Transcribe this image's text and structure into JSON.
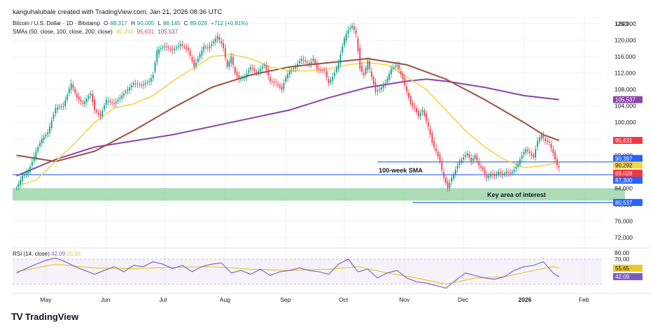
{
  "header": {
    "attribution": "kanguhalubale created with TradingView.com, Jan 21, 2026 08:36 UTC",
    "symbol": "Bitcoin / U.S. Dollar · 1D · Bitstamp",
    "ohlc": {
      "o_label": "O",
      "o": "88,317",
      "h_label": "H",
      "h": "90,005",
      "l_label": "L",
      "l": "88,145",
      "c_label": "C",
      "c": "89,028",
      "change": "+712 (+0.81%)"
    },
    "sma_label": "SMAs (50, close, 100, close, 200, close)",
    "sma50": "90,292",
    "sma100": "95,631",
    "sma200": "105,537",
    "currency": "USD"
  },
  "colors": {
    "up": "#089981",
    "down": "#f23645",
    "sma50": "#f2d64b",
    "sma100": "#9c4f3e",
    "sma200": "#8e44ad",
    "hline": "#2962ff",
    "zone": "#8fd19e",
    "rsi": "#7e57c2",
    "rsi_ma": "#e8c82f"
  },
  "annotations": {
    "sma100w_label": "100-week SMA",
    "key_area_label": "Key area of interest"
  },
  "rsi": {
    "title": "RSI (14, close)",
    "value": "42.09",
    "ma_value": "55.65"
  },
  "footer": {
    "logo_text": "TradingView"
  },
  "chart_data": [
    {
      "type": "candlestick",
      "title": "Bitcoin / U.S. Dollar · 1D · Bitstamp",
      "ylabel": "USD",
      "ylim": [
        70000,
        126000
      ],
      "y_ticks": [
        72000,
        76000,
        80000,
        84000,
        88000,
        92000,
        96000,
        100000,
        104000,
        108000,
        112000,
        116000,
        120000,
        124000
      ],
      "x_labels": [
        "May",
        "Jun",
        "Jul",
        "Aug",
        "Sep",
        "Oct",
        "Nov",
        "Dec",
        "2026",
        "Feb"
      ],
      "x_label_days": [
        15,
        46,
        76,
        107,
        138,
        168,
        199,
        229,
        260,
        291
      ],
      "price_path": [
        [
          0,
          84000
        ],
        [
          3,
          87000
        ],
        [
          6,
          88000
        ],
        [
          10,
          93000
        ],
        [
          13,
          96000
        ],
        [
          16,
          97500
        ],
        [
          20,
          103500
        ],
        [
          24,
          104000
        ],
        [
          28,
          109500
        ],
        [
          31,
          106000
        ],
        [
          34,
          104500
        ],
        [
          38,
          107000
        ],
        [
          40,
          103000
        ],
        [
          43,
          101500
        ],
        [
          46,
          105500
        ],
        [
          50,
          104500
        ],
        [
          53,
          106000
        ],
        [
          56,
          107500
        ],
        [
          60,
          109500
        ],
        [
          64,
          109000
        ],
        [
          68,
          110000
        ],
        [
          70,
          111500
        ],
        [
          72,
          117500
        ],
        [
          76,
          118500
        ],
        [
          80,
          117500
        ],
        [
          84,
          119000
        ],
        [
          88,
          117500
        ],
        [
          91,
          113500
        ],
        [
          94,
          116500
        ],
        [
          96,
          118500
        ],
        [
          98,
          118000
        ],
        [
          100,
          119000
        ],
        [
          103,
          121000
        ],
        [
          106,
          118000
        ],
        [
          108,
          113500
        ],
        [
          110,
          116000
        ],
        [
          112,
          112000
        ],
        [
          114,
          110500
        ],
        [
          117,
          111000
        ],
        [
          120,
          113500
        ],
        [
          123,
          112000
        ],
        [
          127,
          114000
        ],
        [
          130,
          110000
        ],
        [
          133,
          109500
        ],
        [
          136,
          108000
        ],
        [
          138,
          111000
        ],
        [
          140,
          112500
        ],
        [
          143,
          113500
        ],
        [
          146,
          115500
        ],
        [
          150,
          114000
        ],
        [
          152,
          115500
        ],
        [
          154,
          113000
        ],
        [
          158,
          112500
        ],
        [
          160,
          109500
        ],
        [
          163,
          112000
        ],
        [
          165,
          114500
        ],
        [
          168,
          120500
        ],
        [
          170,
          122500
        ],
        [
          172,
          123500
        ],
        [
          174,
          121500
        ],
        [
          176,
          113000
        ],
        [
          178,
          111500
        ],
        [
          180,
          115000
        ],
        [
          182,
          111000
        ],
        [
          184,
          107500
        ],
        [
          186,
          108000
        ],
        [
          189,
          109500
        ],
        [
          192,
          113000
        ],
        [
          195,
          114000
        ],
        [
          198,
          110500
        ],
        [
          200,
          107500
        ],
        [
          202,
          104500
        ],
        [
          204,
          103500
        ],
        [
          206,
          101500
        ],
        [
          208,
          103000
        ],
        [
          211,
          99000
        ],
        [
          213,
          95000
        ],
        [
          215,
          93000
        ],
        [
          217,
          90500
        ],
        [
          219,
          86500
        ],
        [
          221,
          84000
        ],
        [
          223,
          86500
        ],
        [
          225,
          88500
        ],
        [
          227,
          90500
        ],
        [
          229,
          91500
        ],
        [
          231,
          92500
        ],
        [
          233,
          90500
        ],
        [
          235,
          92000
        ],
        [
          237,
          89500
        ],
        [
          239,
          88500
        ],
        [
          241,
          86500
        ],
        [
          243,
          87500
        ],
        [
          245,
          87000
        ],
        [
          247,
          88000
        ],
        [
          249,
          87200
        ],
        [
          251,
          88000
        ],
        [
          253,
          87600
        ],
        [
          255,
          88500
        ],
        [
          257,
          90000
        ],
        [
          259,
          92000
        ],
        [
          261,
          93500
        ],
        [
          263,
          92500
        ],
        [
          265,
          91500
        ],
        [
          267,
          95500
        ],
        [
          269,
          97000
        ],
        [
          271,
          95500
        ],
        [
          273,
          95000
        ],
        [
          275,
          92500
        ],
        [
          277,
          89500
        ],
        [
          278,
          89028
        ]
      ],
      "sma50": [
        [
          0,
          84500
        ],
        [
          10,
          86000
        ],
        [
          20,
          90500
        ],
        [
          30,
          95000
        ],
        [
          40,
          100000
        ],
        [
          50,
          103500
        ],
        [
          60,
          104500
        ],
        [
          70,
          106500
        ],
        [
          80,
          110000
        ],
        [
          90,
          113000
        ],
        [
          100,
          116000
        ],
        [
          110,
          116500
        ],
        [
          120,
          115500
        ],
        [
          130,
          113500
        ],
        [
          140,
          112500
        ],
        [
          150,
          112500
        ],
        [
          160,
          113000
        ],
        [
          170,
          114000
        ],
        [
          180,
          114500
        ],
        [
          190,
          114000
        ],
        [
          200,
          111000
        ],
        [
          210,
          108000
        ],
        [
          220,
          103000
        ],
        [
          230,
          98000
        ],
        [
          240,
          94000
        ],
        [
          250,
          91000
        ],
        [
          260,
          89000
        ],
        [
          270,
          89500
        ],
        [
          278,
          90292
        ]
      ],
      "sma100": [
        [
          0,
          92000
        ],
        [
          20,
          90500
        ],
        [
          40,
          93000
        ],
        [
          60,
          98000
        ],
        [
          80,
          103500
        ],
        [
          100,
          108500
        ],
        [
          120,
          111500
        ],
        [
          140,
          113500
        ],
        [
          160,
          114500
        ],
        [
          180,
          115500
        ],
        [
          200,
          114000
        ],
        [
          220,
          110500
        ],
        [
          240,
          105500
        ],
        [
          260,
          100000
        ],
        [
          270,
          97000
        ],
        [
          278,
          95631
        ]
      ],
      "sma200": [
        [
          0,
          87000
        ],
        [
          20,
          91000
        ],
        [
          40,
          94000
        ],
        [
          60,
          95500
        ],
        [
          80,
          97000
        ],
        [
          100,
          99000
        ],
        [
          120,
          101000
        ],
        [
          140,
          103000
        ],
        [
          160,
          106000
        ],
        [
          180,
          108500
        ],
        [
          200,
          110000
        ],
        [
          210,
          110500
        ],
        [
          220,
          110000
        ],
        [
          240,
          108500
        ],
        [
          260,
          106500
        ],
        [
          278,
          105537
        ]
      ],
      "horizontal_lines": [
        {
          "value": 87300,
          "label": "87,300",
          "name": "100-week SMA"
        },
        {
          "value": 90397,
          "label": "90,397"
        },
        {
          "value": 80537,
          "label": "80,537"
        }
      ],
      "zone": {
        "from": 81000,
        "to": 84000,
        "label": "Key area of interest"
      },
      "price_labels": [
        {
          "value": 105537,
          "text": "105,537",
          "color": "#8e44ad"
        },
        {
          "value": 95631,
          "text": "95,631",
          "color": "#f23645"
        },
        {
          "value": 90397,
          "text": "90,397",
          "color": "#2962ff"
        },
        {
          "value": 90292,
          "text": "90,292",
          "color": "#f2d64b"
        },
        {
          "value": 89028,
          "text": "89,028",
          "color": "#f23645",
          "sub": "15:23:03"
        },
        {
          "value": 87300,
          "text": "87,300",
          "color": "#2962ff"
        },
        {
          "value": 80537,
          "text": "80,537",
          "color": "#2962ff"
        }
      ]
    },
    {
      "type": "line",
      "title": "RSI (14, close)",
      "ylim": [
        20,
        80
      ],
      "y_ticks": [
        80,
        70
      ],
      "band": [
        30,
        70
      ],
      "rsi_path": [
        [
          0,
          48
        ],
        [
          5,
          55
        ],
        [
          10,
          62
        ],
        [
          15,
          68
        ],
        [
          20,
          72
        ],
        [
          25,
          66
        ],
        [
          30,
          58
        ],
        [
          35,
          52
        ],
        [
          40,
          46
        ],
        [
          45,
          52
        ],
        [
          50,
          58
        ],
        [
          55,
          50
        ],
        [
          60,
          60
        ],
        [
          65,
          58
        ],
        [
          70,
          66
        ],
        [
          75,
          62
        ],
        [
          80,
          55
        ],
        [
          85,
          60
        ],
        [
          90,
          50
        ],
        [
          95,
          58
        ],
        [
          100,
          62
        ],
        [
          105,
          64
        ],
        [
          110,
          48
        ],
        [
          115,
          52
        ],
        [
          120,
          46
        ],
        [
          125,
          54
        ],
        [
          130,
          44
        ],
        [
          135,
          50
        ],
        [
          140,
          52
        ],
        [
          145,
          56
        ],
        [
          150,
          52
        ],
        [
          155,
          50
        ],
        [
          160,
          46
        ],
        [
          165,
          62
        ],
        [
          170,
          70
        ],
        [
          175,
          50
        ],
        [
          180,
          54
        ],
        [
          185,
          40
        ],
        [
          190,
          48
        ],
        [
          195,
          52
        ],
        [
          200,
          40
        ],
        [
          205,
          34
        ],
        [
          210,
          32
        ],
        [
          215,
          28
        ],
        [
          220,
          24
        ],
        [
          225,
          36
        ],
        [
          230,
          48
        ],
        [
          235,
          44
        ],
        [
          240,
          40
        ],
        [
          245,
          38
        ],
        [
          250,
          42
        ],
        [
          255,
          52
        ],
        [
          260,
          58
        ],
        [
          265,
          60
        ],
        [
          270,
          66
        ],
        [
          275,
          48
        ],
        [
          278,
          42.09
        ]
      ],
      "rsi_ma_path": [
        [
          0,
          50
        ],
        [
          20,
          62
        ],
        [
          40,
          56
        ],
        [
          60,
          55
        ],
        [
          80,
          57
        ],
        [
          100,
          58
        ],
        [
          120,
          54
        ],
        [
          140,
          52
        ],
        [
          160,
          54
        ],
        [
          175,
          58
        ],
        [
          190,
          48
        ],
        [
          205,
          40
        ],
        [
          220,
          30
        ],
        [
          235,
          40
        ],
        [
          250,
          42
        ],
        [
          265,
          52
        ],
        [
          275,
          58
        ],
        [
          278,
          55.65
        ]
      ],
      "values": {
        "rsi": 42.09,
        "rsi_ma": 55.65
      }
    }
  ]
}
